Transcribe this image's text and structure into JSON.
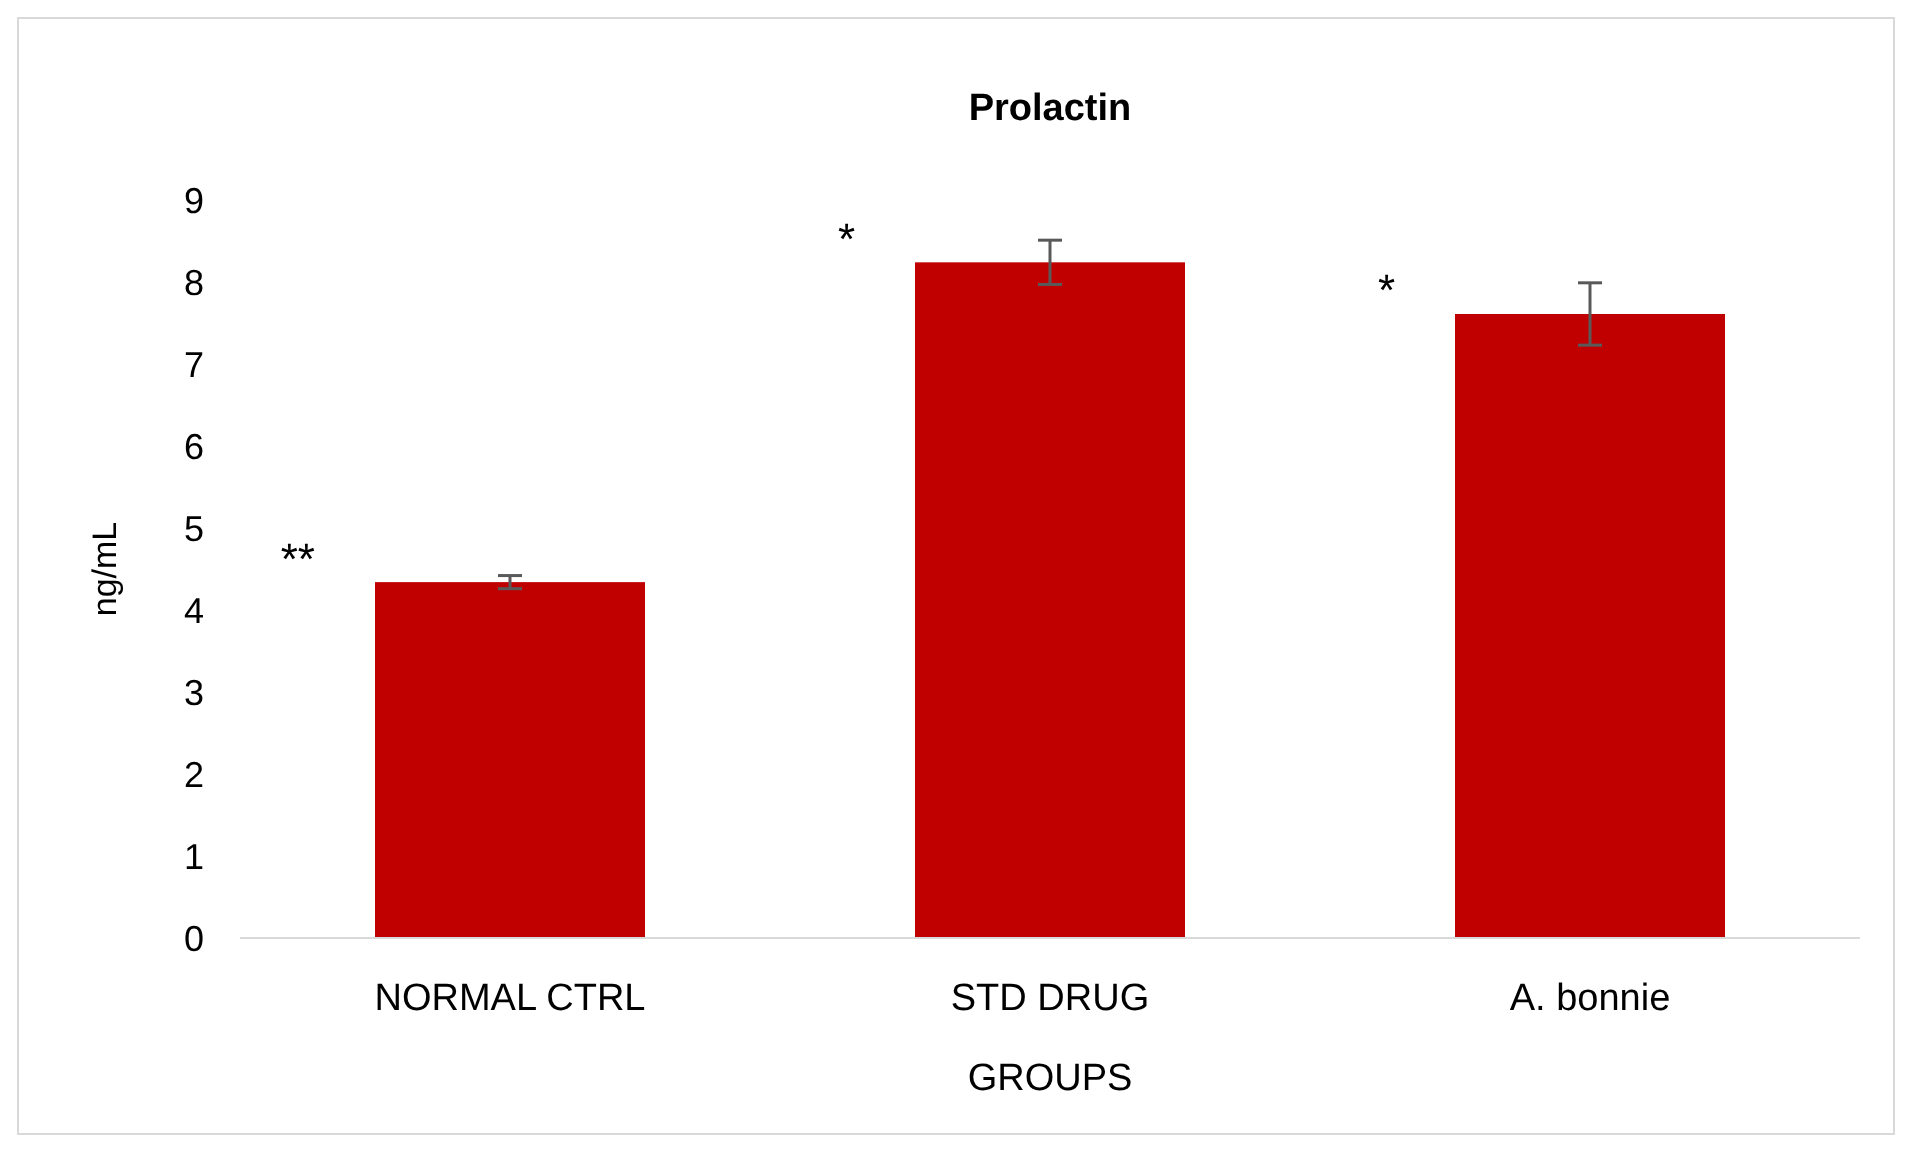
{
  "chart_data": {
    "type": "bar",
    "title": "Prolactin",
    "xlabel": "GROUPS",
    "ylabel": "ng/mL",
    "categories": [
      "NORMAL CTRL",
      "STD DRUG",
      "A. bonnie"
    ],
    "values": [
      4.34,
      8.24,
      7.61
    ],
    "errors": [
      0.08,
      0.27,
      0.38
    ],
    "color": "#c00000",
    "ylim": [
      0,
      9
    ],
    "yticks": [
      0,
      1,
      2,
      3,
      4,
      5,
      6,
      7,
      8,
      9
    ],
    "grid": false,
    "annotations": [
      "**",
      "*",
      "*"
    ]
  }
}
